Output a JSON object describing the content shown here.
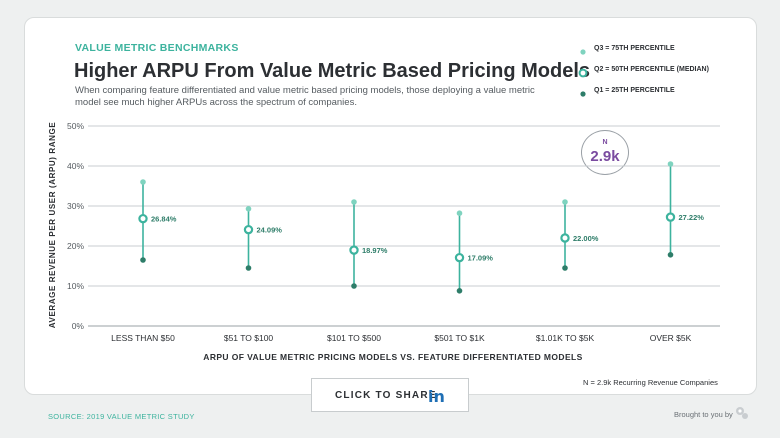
{
  "header": {
    "eyebrow": "VALUE METRIC BENCHMARKS",
    "title": "Higher ARPU From Value Metric Based Pricing Models",
    "subtitle": "When comparing feature differentiated and value metric based pricing models, those deploying a value metric model see much higher ARPUs across the spectrum of companies."
  },
  "legend": {
    "q3": "Q3 = 75TH PERCENTILE",
    "q2": "Q2 = 50TH PERCENTILE (MEDIAN)",
    "q1": "Q1 = 25TH PERCENTILE"
  },
  "badge": {
    "label": "N",
    "value": "2.9k"
  },
  "colors": {
    "q3": "#7fd3bf",
    "q2": "#3db39e",
    "q1": "#2e7d69",
    "label": "#2e7d69",
    "accent": "#7a4ba0"
  },
  "chart_data": {
    "type": "scatter",
    "xlabel": "ARPU OF VALUE METRIC PRICING MODELS VS. FEATURE DIFFERENTIATED MODELS",
    "ylabel": "AVERAGE REVENUE PER USER (ARPU) RANGE",
    "ylim": [
      0,
      50
    ],
    "yticks": [
      0,
      10,
      20,
      30,
      40,
      50
    ],
    "ytick_labels": [
      "0%",
      "10%",
      "20%",
      "30%",
      "40%",
      "50%"
    ],
    "categories": [
      "LESS THAN $50",
      "$51 TO $100",
      "$101 TO $500",
      "$501 TO $1K",
      "$1.01K TO $5K",
      "OVER $5K"
    ],
    "series": [
      {
        "name": "Q3 = 75TH PERCENTILE",
        "values": [
          36,
          29.3,
          31,
          28.2,
          31,
          40.5
        ]
      },
      {
        "name": "Q2 = 50TH PERCENTILE (MEDIAN)",
        "values": [
          26.84,
          24.09,
          18.97,
          17.09,
          22.0,
          27.22
        ]
      },
      {
        "name": "Q1 = 25TH PERCENTILE",
        "values": [
          16.5,
          14.5,
          10,
          8.8,
          14.5,
          17.8
        ]
      }
    ],
    "median_labels": [
      "26.84%",
      "24.09%",
      "18.97%",
      "17.09%",
      "22.00%",
      "27.22%"
    ]
  },
  "share": {
    "label": "CLICK TO SHARE",
    "network": "in"
  },
  "footnote": "N = 2.9k Recurring Revenue Companies",
  "source": "SOURCE: 2019 VALUE METRIC STUDY",
  "brought": "Brought to you by",
  "logo_icon": "price-intelligently-logo-icon"
}
